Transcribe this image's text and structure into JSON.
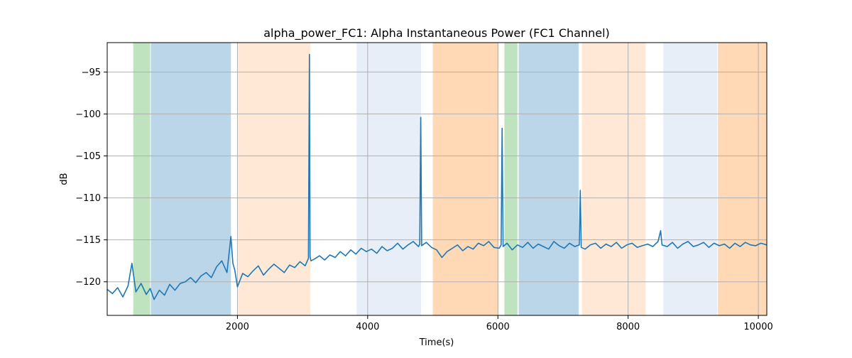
{
  "chart_data": {
    "type": "line",
    "title": "alpha_power_FC1: Alpha Instantaneous Power (FC1 Channel)",
    "xlabel": "Time(s)",
    "ylabel": "dB",
    "xlim": [
      0,
      10130
    ],
    "ylim": [
      -124,
      -91.5
    ],
    "grid": true,
    "legend": "none",
    "x_ticks": [
      {
        "value": 2000,
        "label": "2000"
      },
      {
        "value": 4000,
        "label": "4000"
      },
      {
        "value": 6000,
        "label": "6000"
      },
      {
        "value": 8000,
        "label": "8000"
      },
      {
        "value": 10000,
        "label": "10000"
      }
    ],
    "y_ticks": [
      {
        "value": -95,
        "label": "−95"
      },
      {
        "value": -100,
        "label": "−100"
      },
      {
        "value": -105,
        "label": "−105"
      },
      {
        "value": -110,
        "label": "−110"
      },
      {
        "value": -115,
        "label": "−115"
      },
      {
        "value": -120,
        "label": "−120"
      }
    ],
    "line_color": "#1f77b4",
    "bands": [
      {
        "x0": 400,
        "x1": 660,
        "color": "#2ca02c",
        "opacity": 0.3
      },
      {
        "x0": 670,
        "x1": 1900,
        "color": "#1f77b4",
        "opacity": 0.3
      },
      {
        "x0": 2010,
        "x1": 3120,
        "color": "#ff7f0e",
        "opacity": 0.17
      },
      {
        "x0": 3830,
        "x1": 4820,
        "color": "#aec7e8",
        "opacity": 0.3
      },
      {
        "x0": 5000,
        "x1": 6010,
        "color": "#ff7f0e",
        "opacity": 0.3
      },
      {
        "x0": 6100,
        "x1": 6300,
        "color": "#2ca02c",
        "opacity": 0.3
      },
      {
        "x0": 6320,
        "x1": 7240,
        "color": "#1f77b4",
        "opacity": 0.3
      },
      {
        "x0": 7290,
        "x1": 8270,
        "color": "#ff7f0e",
        "opacity": 0.17
      },
      {
        "x0": 8540,
        "x1": 9370,
        "color": "#aec7e8",
        "opacity": 0.3
      },
      {
        "x0": 9380,
        "x1": 10130,
        "color": "#ff7f0e",
        "opacity": 0.3
      }
    ],
    "series": [
      {
        "x": [
          0,
          80,
          160,
          240,
          320,
          380,
          440,
          520,
          600,
          660,
          720,
          800,
          880,
          960,
          1040,
          1120,
          1200,
          1280,
          1360,
          1440,
          1520,
          1600,
          1680,
          1760,
          1840,
          1900,
          1930,
          1960,
          2000,
          2080,
          2160,
          2240,
          2320,
          2400,
          2480,
          2560,
          2640,
          2720,
          2800,
          2880,
          2960,
          3040,
          3090,
          3105,
          3115,
          3130,
          3180,
          3260,
          3340,
          3420,
          3500,
          3580,
          3660,
          3740,
          3820,
          3900,
          3980,
          4060,
          4140,
          4220,
          4300,
          4380,
          4460,
          4540,
          4620,
          4700,
          4780,
          4800,
          4815,
          4830,
          4900,
          4980,
          5060,
          5140,
          5220,
          5300,
          5380,
          5460,
          5540,
          5620,
          5700,
          5780,
          5860,
          5940,
          6020,
          6050,
          6065,
          6080,
          6140,
          6220,
          6300,
          6380,
          6460,
          6540,
          6620,
          6700,
          6780,
          6860,
          6940,
          7020,
          7100,
          7180,
          7250,
          7265,
          7280,
          7340,
          7420,
          7500,
          7580,
          7660,
          7740,
          7820,
          7900,
          7980,
          8060,
          8140,
          8220,
          8300,
          8380,
          8460,
          8500,
          8520,
          8600,
          8680,
          8760,
          8840,
          8920,
          9000,
          9080,
          9160,
          9240,
          9320,
          9400,
          9480,
          9560,
          9640,
          9720,
          9800,
          9880,
          9960,
          10040,
          10130
        ],
        "y": [
          -120.9,
          -121.4,
          -120.7,
          -121.8,
          -120.5,
          -117.8,
          -121.2,
          -120.2,
          -121.5,
          -120.8,
          -122.1,
          -121.0,
          -121.6,
          -120.3,
          -121.0,
          -120.2,
          -120.0,
          -119.5,
          -120.1,
          -119.3,
          -118.9,
          -119.5,
          -118.2,
          -117.5,
          -118.9,
          -114.6,
          -117.8,
          -118.6,
          -120.6,
          -119.0,
          -119.4,
          -118.7,
          -118.1,
          -119.2,
          -118.5,
          -117.9,
          -118.4,
          -118.9,
          -118.0,
          -118.3,
          -117.6,
          -118.1,
          -117.2,
          -92.9,
          -117.0,
          -117.5,
          -117.3,
          -116.9,
          -117.4,
          -116.8,
          -117.1,
          -116.4,
          -116.9,
          -116.2,
          -116.7,
          -116.0,
          -116.4,
          -116.1,
          -116.6,
          -115.8,
          -116.3,
          -116.0,
          -115.4,
          -116.1,
          -115.6,
          -115.2,
          -115.8,
          -115.5,
          -100.4,
          -115.7,
          -115.3,
          -115.9,
          -116.2,
          -117.1,
          -116.4,
          -116.0,
          -115.6,
          -116.3,
          -115.8,
          -116.1,
          -115.4,
          -115.7,
          -115.2,
          -115.9,
          -116.0,
          -115.6,
          -101.7,
          -115.8,
          -115.4,
          -116.2,
          -115.6,
          -115.9,
          -115.3,
          -116.0,
          -115.5,
          -115.8,
          -116.1,
          -115.2,
          -115.7,
          -116.0,
          -115.4,
          -115.8,
          -115.6,
          -109.1,
          -115.9,
          -116.1,
          -115.6,
          -115.4,
          -116.0,
          -115.5,
          -115.8,
          -115.3,
          -116.0,
          -115.6,
          -115.4,
          -115.9,
          -115.7,
          -115.5,
          -115.8,
          -115.2,
          -113.9,
          -115.6,
          -115.8,
          -115.3,
          -116.0,
          -115.5,
          -115.2,
          -115.8,
          -115.6,
          -115.3,
          -115.9,
          -115.4,
          -115.7,
          -115.5,
          -116.0,
          -115.4,
          -115.8,
          -115.3,
          -115.6,
          -115.7,
          -115.4,
          -115.6
        ]
      }
    ]
  }
}
